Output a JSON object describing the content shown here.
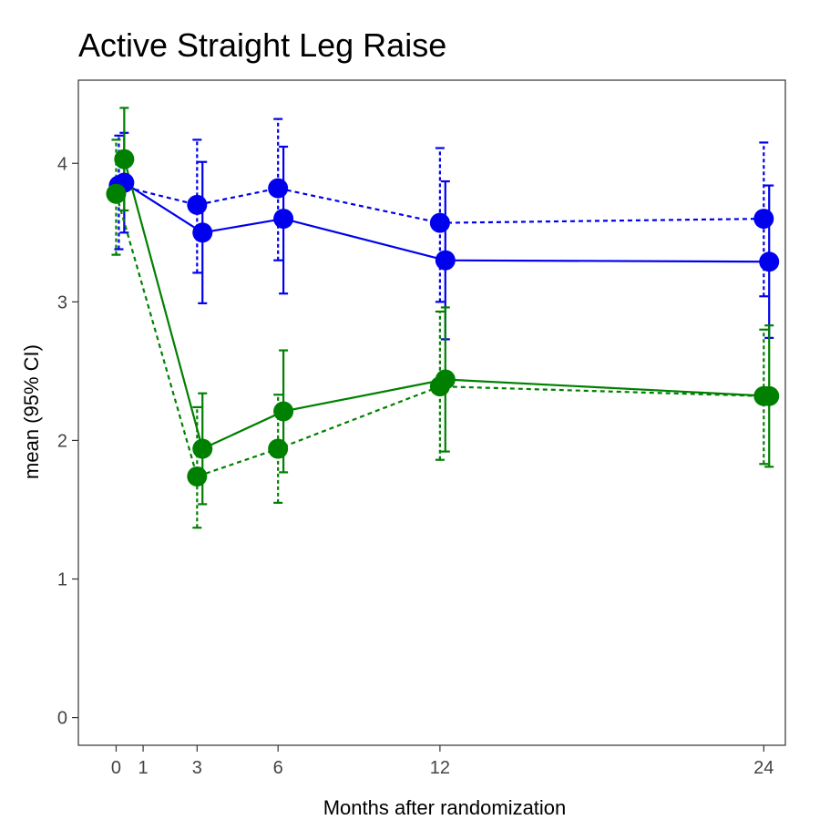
{
  "chart_data": {
    "type": "line",
    "title": "Active Straight Leg Raise",
    "xlabel": "Months after randomization",
    "ylabel": "mean (95% CI)",
    "x_ticks": [
      0,
      1,
      3,
      6,
      12,
      24
    ],
    "y_ticks": [
      0,
      1,
      2,
      3,
      4
    ],
    "xlim": [
      -1.4,
      24.8
    ],
    "ylim": [
      -0.2,
      4.6
    ],
    "grid": false,
    "series": [
      {
        "color": "#0000ee",
        "line_style": "solid",
        "x": [
          0.3,
          3.2,
          6.2,
          12.2,
          24.2
        ],
        "y": [
          3.86,
          3.5,
          3.6,
          3.3,
          3.29
        ],
        "ci_low": [
          3.5,
          2.99,
          3.06,
          2.73,
          2.74
        ],
        "ci_high": [
          4.22,
          4.01,
          4.12,
          3.87,
          3.84
        ]
      },
      {
        "color": "#0000ee",
        "line_style": "dashed",
        "x": [
          0.1,
          3.0,
          6.0,
          12.0,
          24.0
        ],
        "y": [
          3.84,
          3.7,
          3.82,
          3.57,
          3.6
        ],
        "ci_low": [
          3.38,
          3.21,
          3.3,
          3.0,
          3.04
        ],
        "ci_high": [
          4.2,
          4.17,
          4.32,
          4.11,
          4.15
        ]
      },
      {
        "color": "#008000",
        "line_style": "solid",
        "x": [
          0.3,
          3.2,
          6.2,
          12.2,
          24.2
        ],
        "y": [
          4.03,
          1.94,
          2.21,
          2.44,
          2.32
        ],
        "ci_low": [
          3.66,
          1.54,
          1.77,
          1.92,
          1.81
        ],
        "ci_high": [
          4.4,
          2.34,
          2.65,
          2.96,
          2.83
        ]
      },
      {
        "color": "#008000",
        "line_style": "dashed",
        "x": [
          0.0,
          3.0,
          6.0,
          12.0,
          24.0
        ],
        "y": [
          3.78,
          1.74,
          1.94,
          2.39,
          2.32
        ],
        "ci_low": [
          3.34,
          1.37,
          1.55,
          1.86,
          1.83
        ],
        "ci_high": [
          4.17,
          2.24,
          2.33,
          2.93,
          2.8
        ]
      }
    ]
  }
}
